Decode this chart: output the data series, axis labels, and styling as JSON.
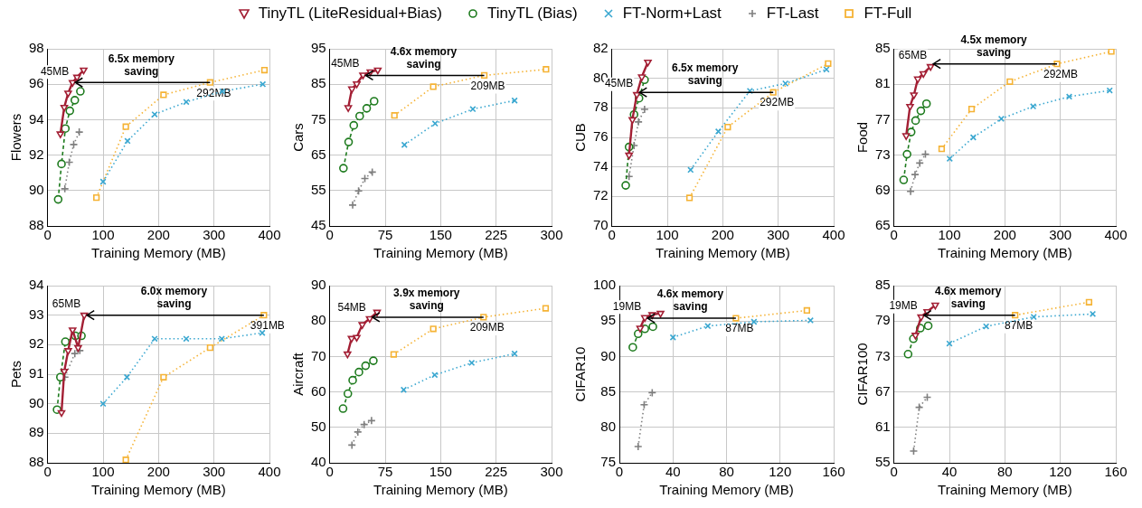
{
  "chart_data": [
    {
      "type": "line",
      "legend": "top",
      "xlabel": "Training Memory (MB)",
      "ylabel": "Flowers",
      "xlim": [
        0,
        400
      ],
      "xticks": [
        0,
        100,
        200,
        300,
        400
      ],
      "ylim": [
        88,
        98
      ],
      "yticks": [
        88,
        90,
        92,
        94,
        96,
        98
      ],
      "grid": true,
      "annotations": [
        "6.5x memory saving",
        {
          "text": "45MB",
          "x": 45,
          "y": 96.1
        },
        {
          "text": "292MB",
          "x": 293,
          "y": 96.1
        }
      ],
      "series": [
        {
          "name": "TinyTL (LiteResidual+Bias)",
          "color": "#a31f34",
          "marker": "triangle",
          "line_style": "solid",
          "x": [
            23,
            30,
            37,
            45,
            53,
            65
          ],
          "values": [
            93.2,
            94.7,
            95.5,
            96.1,
            96.4,
            96.8
          ]
        },
        {
          "name": "TinyTL (Bias)",
          "color": "#1e7b1e",
          "marker": "circle",
          "line_style": "dashed",
          "x": [
            19,
            25,
            32,
            40,
            49,
            59
          ],
          "values": [
            89.5,
            91.5,
            93.5,
            94.5,
            95.1,
            95.6
          ]
        },
        {
          "name": "FT-Norm+Last",
          "color": "#3aa7d0",
          "marker": "x",
          "line_style": "dotted",
          "x": [
            100,
            144,
            193,
            250,
            315,
            388
          ],
          "values": [
            90.5,
            92.8,
            94.3,
            95.0,
            95.6,
            96.0
          ]
        },
        {
          "name": "FT-Last",
          "color": "#7f7f7f",
          "marker": "cross",
          "line_style": "dotted",
          "x": [
            31,
            39,
            47,
            57
          ],
          "values": [
            90.1,
            91.6,
            92.6,
            93.3
          ]
        },
        {
          "name": "FT-Full",
          "color": "#f5b335",
          "marker": "square",
          "line_style": "dotted",
          "x": [
            88,
            141,
            209,
            293,
            391
          ],
          "values": [
            89.6,
            93.6,
            95.4,
            96.1,
            96.8
          ]
        }
      ]
    },
    {
      "type": "line",
      "xlabel": "Training Memory (MB)",
      "ylabel": "Cars",
      "xlim": [
        0,
        300
      ],
      "xticks": [
        0,
        75,
        150,
        225,
        300
      ],
      "ylim": [
        45,
        95
      ],
      "yticks": [
        45,
        55,
        65,
        75,
        85,
        95
      ],
      "grid": true,
      "annotations": [
        "4.6x memory saving",
        {
          "text": "45MB",
          "x": 45,
          "y": 87.6
        },
        {
          "text": "209MB",
          "x": 209,
          "y": 87.5
        }
      ],
      "series": [
        {
          "color": "#a31f34",
          "marker": "triangle",
          "line_style": "solid",
          "x": [
            25,
            30,
            36.5,
            45,
            55,
            65
          ],
          "values": [
            78.4,
            83.7,
            85.1,
            87.6,
            88.5,
            89
          ]
        },
        {
          "color": "#1e7b1e",
          "marker": "circle",
          "line_style": "dashed",
          "x": [
            18.5,
            25.5,
            32.5,
            40.5,
            50,
            60
          ],
          "values": [
            61.3,
            68.7,
            73.4,
            76.0,
            78.2,
            80.2
          ]
        },
        {
          "color": "#3aa7d0",
          "marker": "x",
          "line_style": "dotted",
          "x": [
            101,
            142.5,
            193.5,
            250
          ],
          "values": [
            67.9,
            73.9,
            78.0,
            80.4
          ]
        },
        {
          "color": "#7f7f7f",
          "marker": "cross",
          "line_style": "dotted",
          "x": [
            31,
            39,
            47.5,
            57.5
          ],
          "values": [
            50.9,
            54.9,
            58.4,
            60.2
          ]
        },
        {
          "color": "#f5b335",
          "marker": "square",
          "line_style": "dotted",
          "x": [
            87.5,
            140,
            209,
            292.5
          ],
          "values": [
            76.2,
            84.3,
            87.5,
            89.2
          ]
        }
      ]
    },
    {
      "type": "line",
      "xlabel": "Training Memory (MB)",
      "ylabel": "CUB",
      "xlim": [
        0,
        400
      ],
      "xticks": [
        0,
        100,
        200,
        300,
        400
      ],
      "ylim": [
        70,
        82
      ],
      "yticks": [
        70,
        72,
        74,
        76,
        78,
        80,
        82
      ],
      "grid": true,
      "annotations": [
        "6.5x memory saving",
        {
          "text": "45MB",
          "x": 45,
          "y": 78.9
        },
        {
          "text": "292MB",
          "x": 291,
          "y": 79.05
        }
      ],
      "series": [
        {
          "color": "#a31f34",
          "marker": "triangle",
          "line_style": "solid",
          "x": [
            31,
            37,
            45,
            54,
            65
          ],
          "values": [
            74.8,
            77.2,
            78.9,
            80.1,
            81.1
          ]
        },
        {
          "color": "#1e7b1e",
          "marker": "circle",
          "line_style": "dashed",
          "x": [
            25,
            31,
            40,
            49,
            59
          ],
          "values": [
            72.75,
            75.35,
            77.55,
            78.65,
            79.9
          ]
        },
        {
          "color": "#3aa7d0",
          "marker": "x",
          "line_style": "dotted",
          "x": [
            142,
            192,
            249,
            313,
            387
          ],
          "values": [
            73.8,
            76.4,
            79.15,
            79.65,
            80.6
          ]
        },
        {
          "color": "#7f7f7f",
          "marker": "cross",
          "line_style": "dotted",
          "x": [
            31,
            40,
            48,
            59
          ],
          "values": [
            73.35,
            75.45,
            77.05,
            77.9
          ]
        },
        {
          "color": "#f5b335",
          "marker": "square",
          "line_style": "dotted",
          "x": [
            140,
            209,
            291,
            390
          ],
          "values": [
            71.9,
            76.7,
            79.05,
            81.0
          ]
        }
      ]
    },
    {
      "type": "line",
      "xlabel": "Training Memory (MB)",
      "ylabel": "Food",
      "xlim": [
        0,
        400
      ],
      "xticks": [
        0,
        100,
        200,
        300,
        400
      ],
      "ylim": [
        65,
        85
      ],
      "yticks": [
        65,
        69,
        73,
        77,
        81,
        85
      ],
      "grid": true,
      "annotations": [
        "4.5x memory saving",
        {
          "text": "65MB",
          "x": 66,
          "y": 83.0
        },
        {
          "text": "292MB",
          "x": 294,
          "y": 83.3
        }
      ],
      "series": [
        {
          "color": "#a31f34",
          "marker": "triangle",
          "line_style": "solid",
          "x": [
            22,
            29,
            36,
            43,
            53,
            66
          ],
          "values": [
            75.2,
            78.5,
            79.8,
            81.6,
            82.2,
            83.0
          ]
        },
        {
          "color": "#1e7b1e",
          "marker": "circle",
          "line_style": "dashed",
          "x": [
            17.5,
            23.6,
            31,
            39,
            48.5,
            58.7
          ],
          "values": [
            70.2,
            73.1,
            75.6,
            76.9,
            78.0,
            78.8
          ]
        },
        {
          "color": "#3aa7d0",
          "marker": "x",
          "line_style": "dotted",
          "x": [
            100.5,
            143,
            193.6,
            251,
            316,
            389
          ],
          "values": [
            72.6,
            75.0,
            77.1,
            78.5,
            79.6,
            80.3
          ]
        },
        {
          "color": "#7f7f7f",
          "marker": "cross",
          "line_style": "dotted",
          "x": [
            30,
            38,
            46.5,
            56.7
          ],
          "values": [
            68.9,
            70.8,
            72.1,
            73.1
          ]
        },
        {
          "color": "#f5b335",
          "marker": "square",
          "line_style": "dotted",
          "x": [
            86,
            140,
            209,
            294,
            392
          ],
          "values": [
            73.7,
            78.2,
            81.3,
            83.3,
            84.7
          ]
        }
      ]
    },
    {
      "type": "line",
      "xlabel": "Training Memory (MB)",
      "ylabel": "Pets",
      "xlim": [
        0,
        400
      ],
      "xticks": [
        0,
        100,
        200,
        300,
        400
      ],
      "ylim": [
        88,
        94
      ],
      "yticks": [
        88,
        89,
        90,
        91,
        92,
        93,
        94
      ],
      "grid": true,
      "annotations": [
        "6.0x memory saving",
        {
          "text": "65MB",
          "x": 66,
          "y": 93.0
        },
        {
          "text": "391MB",
          "x": 390,
          "y": 93.0
        }
      ],
      "series": [
        {
          "color": "#a31f34",
          "marker": "triangle",
          "line_style": "solid",
          "x": [
            25,
            30,
            37,
            45,
            55,
            66
          ],
          "values": [
            89.7,
            91.1,
            91.8,
            92.5,
            91.9,
            93.0
          ]
        },
        {
          "color": "#1e7b1e",
          "marker": "circle",
          "line_style": "dashed",
          "x": [
            17,
            23,
            32,
            50,
            61
          ],
          "values": [
            89.8,
            90.9,
            92.1,
            92.3,
            92.3
          ]
        },
        {
          "color": "#3aa7d0",
          "marker": "x",
          "line_style": "dotted",
          "x": [
            100,
            143,
            193,
            250,
            314,
            387
          ],
          "values": [
            90.0,
            90.9,
            92.2,
            92.2,
            92.2,
            92.4
          ]
        },
        {
          "color": "#7f7f7f",
          "marker": "cross",
          "line_style": "dotted",
          "x": [
            31,
            49,
            58
          ],
          "values": [
            90.9,
            91.7,
            91.8
          ]
        },
        {
          "color": "#f5b335",
          "marker": "square",
          "line_style": "dotted",
          "x": [
            141,
            209,
            293,
            390
          ],
          "values": [
            88.1,
            90.9,
            91.9,
            93.0
          ]
        }
      ]
    },
    {
      "type": "line",
      "xlabel": "Training Memory (MB)",
      "ylabel": "Aircraft",
      "xlim": [
        0,
        300
      ],
      "xticks": [
        0,
        75,
        150,
        225,
        300
      ],
      "ylim": [
        40,
        90
      ],
      "yticks": [
        40,
        50,
        60,
        70,
        80,
        90
      ],
      "grid": true,
      "annotations": [
        "3.9x memory saving",
        {
          "text": "54MB",
          "x": 54,
          "y": 80.7
        },
        {
          "text": "209MB",
          "x": 208,
          "y": 81.1
        }
      ],
      "series": [
        {
          "color": "#a31f34",
          "marker": "triangle",
          "line_style": "solid",
          "x": [
            24,
            29.5,
            36.5,
            44,
            54,
            64
          ],
          "values": [
            70.7,
            75.1,
            75.4,
            79.0,
            80.7,
            82.5
          ]
        },
        {
          "color": "#1e7b1e",
          "marker": "circle",
          "line_style": "dashed",
          "x": [
            18,
            24.5,
            31,
            39.5,
            48.5,
            59
          ],
          "values": [
            55.3,
            59.5,
            63.3,
            65.6,
            67.4,
            68.8
          ]
        },
        {
          "color": "#3aa7d0",
          "marker": "x",
          "line_style": "dotted",
          "x": [
            100,
            142,
            192,
            250
          ],
          "values": [
            60.6,
            64.8,
            68.2,
            70.8
          ]
        },
        {
          "color": "#7f7f7f",
          "marker": "cross",
          "line_style": "dotted",
          "x": [
            30,
            38,
            46.5,
            56.5
          ],
          "values": [
            45.0,
            48.7,
            50.8,
            51.9
          ]
        },
        {
          "color": "#f5b335",
          "marker": "square",
          "line_style": "dotted",
          "x": [
            86.5,
            140,
            208,
            292
          ],
          "values": [
            70.6,
            77.8,
            81.1,
            83.6
          ]
        }
      ]
    },
    {
      "type": "line",
      "xlabel": "Training Memory (MB)",
      "ylabel": "CIFAR10",
      "xlim": [
        0,
        160
      ],
      "xticks": [
        0,
        40,
        80,
        120,
        160
      ],
      "ylim": [
        75,
        100
      ],
      "yticks": [
        75,
        80,
        85,
        90,
        95,
        100
      ],
      "grid": true,
      "annotations": [
        "4.6x memory saving",
        {
          "text": "19MB",
          "x": 19,
          "y": 95.5
        },
        {
          "text": "87MB",
          "x": 87,
          "y": 95.4
        }
      ],
      "series": [
        {
          "color": "#a31f34",
          "marker": "triangle",
          "line_style": "solid",
          "x": [
            15.5,
            19,
            24.5,
            30.7
          ],
          "values": [
            94.0,
            95.5,
            95.9,
            96.1
          ]
        },
        {
          "color": "#1e7b1e",
          "marker": "circle",
          "line_style": "dashed",
          "x": [
            10,
            14,
            19,
            25
          ],
          "values": [
            91.3,
            93.2,
            93.9,
            94.2
          ]
        },
        {
          "color": "#3aa7d0",
          "marker": "x",
          "line_style": "dotted",
          "x": [
            40,
            66,
            100.5,
            142.7
          ],
          "values": [
            92.7,
            94.3,
            94.9,
            95.1
          ]
        },
        {
          "color": "#7f7f7f",
          "marker": "cross",
          "line_style": "dotted",
          "x": [
            14,
            18.5,
            24.5
          ],
          "values": [
            77.3,
            83.2,
            84.9
          ]
        },
        {
          "color": "#f5b335",
          "marker": "square",
          "line_style": "dotted",
          "x": [
            87,
            140
          ],
          "values": [
            95.4,
            96.5
          ]
        }
      ]
    },
    {
      "type": "line",
      "xlabel": "Training Memory (MB)",
      "ylabel": "CIFAR100",
      "xlim": [
        0,
        160
      ],
      "xticks": [
        0,
        40,
        80,
        120,
        160
      ],
      "ylim": [
        55,
        85
      ],
      "yticks": [
        55,
        61,
        67,
        73,
        79,
        85
      ],
      "grid": true,
      "annotations": [
        "4.6x memory saving",
        {
          "text": "19MB",
          "x": 19.6,
          "y": 79.7
        },
        {
          "text": "87MB",
          "x": 87.4,
          "y": 80.0
        }
      ],
      "series": [
        {
          "color": "#a31f34",
          "marker": "triangle",
          "line_style": "solid",
          "x": [
            15.5,
            19.6,
            24,
            29.8
          ],
          "values": [
            76.6,
            79.7,
            80.6,
            81.7
          ]
        },
        {
          "color": "#1e7b1e",
          "marker": "circle",
          "line_style": "dashed",
          "x": [
            10.2,
            14,
            19,
            24.7
          ],
          "values": [
            73.4,
            76.0,
            77.8,
            78.2
          ]
        },
        {
          "color": "#3aa7d0",
          "marker": "x",
          "line_style": "dotted",
          "x": [
            40,
            66.5,
            100.8,
            143.4
          ],
          "values": [
            75.2,
            78.1,
            79.7,
            80.2
          ]
        },
        {
          "color": "#7f7f7f",
          "marker": "cross",
          "line_style": "dotted",
          "x": [
            14.2,
            18.2,
            24
          ],
          "values": [
            57.0,
            64.4,
            66.1
          ]
        },
        {
          "color": "#f5b335",
          "marker": "square",
          "line_style": "dotted",
          "x": [
            87.4,
            140.7
          ],
          "values": [
            80.0,
            82.2
          ]
        }
      ]
    }
  ]
}
